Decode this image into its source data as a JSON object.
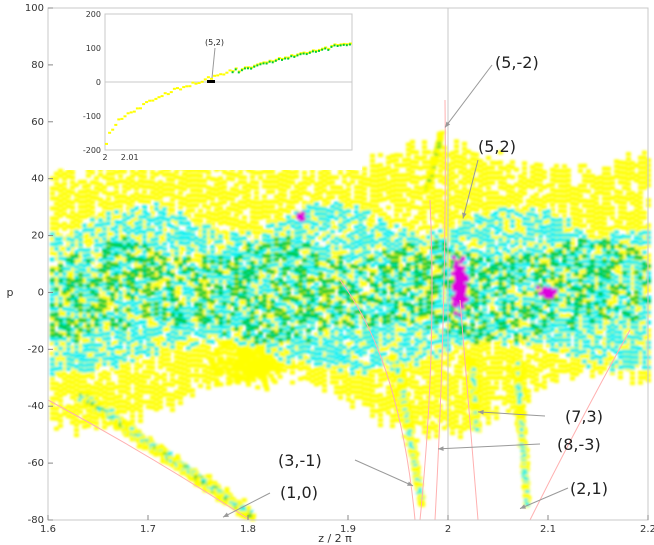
{
  "chart_data": {
    "type": "scatter",
    "xlabel": "z / 2 π",
    "ylabel": "p",
    "xlim": [
      1.6,
      2.2
    ],
    "ylim": [
      -80,
      100
    ],
    "grid": false,
    "x_ticks": [
      "1.6",
      "1.7",
      "1.8",
      "1.9",
      "2",
      "2.1",
      "2.2"
    ],
    "y_ticks": [
      "-80",
      "-60",
      "-40",
      "-20",
      "0",
      "20",
      "40",
      "60",
      "80",
      "100"
    ],
    "colors": {
      "density_low": "#ffff00",
      "density_mid": "#00f0f0",
      "density_high": "#00cc33",
      "density_peak": "#dd00dd",
      "resonance_curve": "#ffb0b0",
      "frame": "#c8c8c8",
      "arrow": "#999999"
    },
    "resonance_labels": [
      {
        "label": "(5,-2)",
        "x": 1.997,
        "y": 58
      },
      {
        "label": "(5,2)",
        "x": 2.015,
        "y": 26
      },
      {
        "label": "(7,3)",
        "x": 2.03,
        "y": -42
      },
      {
        "label": "(8,-3)",
        "x": 1.99,
        "y": -55
      },
      {
        "label": "(3,-1)",
        "x": 1.965,
        "y": -68
      },
      {
        "label": "(2,1)",
        "x": 2.072,
        "y": -76
      },
      {
        "label": "(1,0)",
        "x": 1.775,
        "y": -79
      }
    ],
    "inset": {
      "xlim": [
        2,
        2.1
      ],
      "ylim": [
        -200,
        200
      ],
      "x_ticks": [
        "2",
        "2.01"
      ],
      "y_ticks": [
        "-200",
        "-100",
        "0",
        "100",
        "200"
      ],
      "annotation": "(5,2)"
    }
  }
}
